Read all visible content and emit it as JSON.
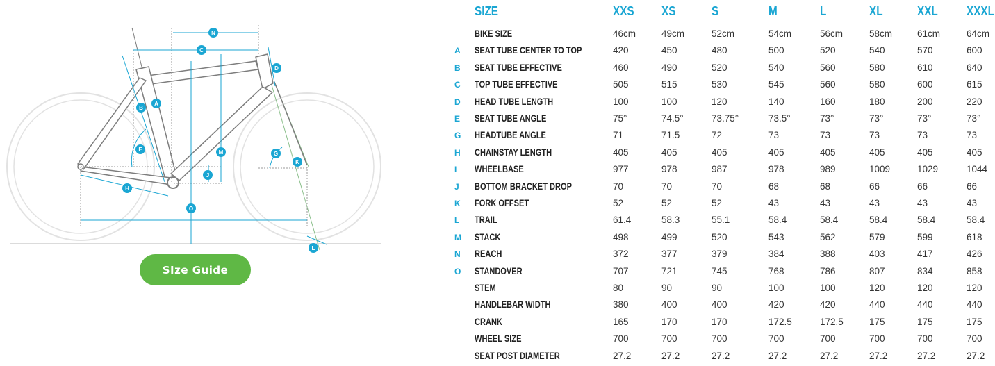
{
  "diagram": {
    "markers": [
      "A",
      "B",
      "C",
      "D",
      "E",
      "G",
      "H",
      "J",
      "K",
      "L",
      "M",
      "N",
      "O"
    ]
  },
  "button": {
    "label": "SIze Guide"
  },
  "colors": {
    "accent": "#1aa6d3",
    "button": "#5fb845",
    "frame": "#7d7d7d",
    "wheel": "#e2e2e2",
    "fork_line": "#8cc08c"
  },
  "table": {
    "size_header": "SIZE",
    "sizes": [
      "XXS",
      "XS",
      "S",
      "M",
      "L",
      "XL",
      "XXL",
      "XXXL"
    ],
    "rows": [
      {
        "letter": "",
        "label": "BIKE SIZE",
        "values": [
          "46cm",
          "49cm",
          "52cm",
          "54cm",
          "56cm",
          "58cm",
          "61cm",
          "64cm"
        ]
      },
      {
        "letter": "A",
        "label": "SEAT TUBE CENTER TO TOP",
        "values": [
          "420",
          "450",
          "480",
          "500",
          "520",
          "540",
          "570",
          "600"
        ]
      },
      {
        "letter": "B",
        "label": "SEAT TUBE EFFECTIVE",
        "values": [
          "460",
          "490",
          "520",
          "540",
          "560",
          "580",
          "610",
          "640"
        ]
      },
      {
        "letter": "C",
        "label": "TOP TUBE EFFECTIVE",
        "values": [
          "505",
          "515",
          "530",
          "545",
          "560",
          "580",
          "600",
          "615"
        ]
      },
      {
        "letter": "D",
        "label": "HEAD TUBE LENGTH",
        "values": [
          "100",
          "100",
          "120",
          "140",
          "160",
          "180",
          "200",
          "220"
        ]
      },
      {
        "letter": "E",
        "label": "SEAT TUBE ANGLE",
        "values": [
          "75°",
          "74.5°",
          "73.75°",
          "73.5°",
          "73°",
          "73°",
          "73°",
          "73°"
        ]
      },
      {
        "letter": "G",
        "label": "HEADTUBE ANGLE",
        "values": [
          "71",
          "71.5",
          "72",
          "73",
          "73",
          "73",
          "73",
          "73"
        ]
      },
      {
        "letter": "H",
        "label": "CHAINSTAY LENGTH",
        "values": [
          "405",
          "405",
          "405",
          "405",
          "405",
          "405",
          "405",
          "405"
        ]
      },
      {
        "letter": "I",
        "label": "WHEELBASE",
        "values": [
          "977",
          "978",
          "987",
          "978",
          "989",
          "1009",
          "1029",
          "1044"
        ]
      },
      {
        "letter": "J",
        "label": "BOTTOM BRACKET DROP",
        "values": [
          "70",
          "70",
          "70",
          "68",
          "68",
          "66",
          "66",
          "66"
        ]
      },
      {
        "letter": "K",
        "label": "FORK OFFSET",
        "values": [
          "52",
          "52",
          "52",
          "43",
          "43",
          "43",
          "43",
          "43"
        ]
      },
      {
        "letter": "L",
        "label": "TRAIL",
        "values": [
          "61.4",
          "58.3",
          "55.1",
          "58.4",
          "58.4",
          "58.4",
          "58.4",
          "58.4"
        ]
      },
      {
        "letter": "M",
        "label": "STACK",
        "values": [
          "498",
          "499",
          "520",
          "543",
          "562",
          "579",
          "599",
          "618"
        ]
      },
      {
        "letter": "N",
        "label": "REACH",
        "values": [
          "372",
          "377",
          "379",
          "384",
          "388",
          "403",
          "417",
          "426"
        ]
      },
      {
        "letter": "O",
        "label": "STANDOVER",
        "values": [
          "707",
          "721",
          "745",
          "768",
          "786",
          "807",
          "834",
          "858"
        ]
      },
      {
        "letter": "",
        "label": "STEM",
        "values": [
          "80",
          "90",
          "90",
          "100",
          "100",
          "120",
          "120",
          "120"
        ]
      },
      {
        "letter": "",
        "label": "HANDLEBAR WIDTH",
        "values": [
          "380",
          "400",
          "400",
          "420",
          "420",
          "440",
          "440",
          "440"
        ]
      },
      {
        "letter": "",
        "label": "CRANK",
        "values": [
          "165",
          "170",
          "170",
          "172.5",
          "172.5",
          "175",
          "175",
          "175"
        ]
      },
      {
        "letter": "",
        "label": "WHEEL SIZE",
        "values": [
          "700",
          "700",
          "700",
          "700",
          "700",
          "700",
          "700",
          "700"
        ]
      },
      {
        "letter": "",
        "label": "SEAT POST DIAMETER",
        "values": [
          "27.2",
          "27.2",
          "27.2",
          "27.2",
          "27.2",
          "27.2",
          "27.2",
          "27.2"
        ]
      }
    ]
  }
}
